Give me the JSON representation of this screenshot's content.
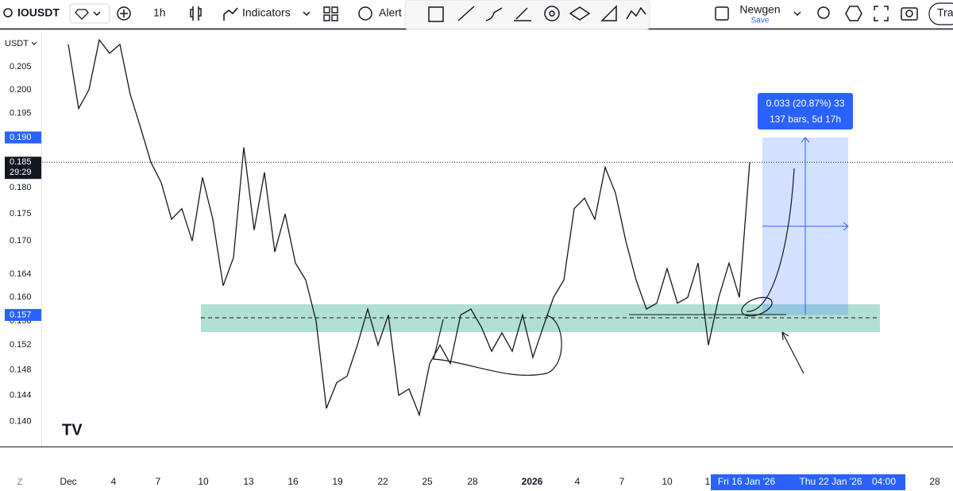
{
  "toolbar": {
    "symbol": "IOUSDT",
    "interval": "1h",
    "indicators": "Indicators",
    "alert": "Alert",
    "layout_name": "Newgen",
    "save": "Save",
    "trade": "Trad"
  },
  "chart_data": {
    "type": "line",
    "currency": "USDT",
    "log": true,
    "color": "#131722",
    "ylim": [
      0.1363,
      0.2134
    ],
    "yticks": [
      0.205,
      {
        "value": 0.2,
        "label": "0.200"
      },
      0.195,
      {
        "value": 0.19,
        "label": "0.190"
      },
      0.185,
      {
        "value": 0.18,
        "label": "0.180"
      },
      0.175,
      {
        "value": 0.17,
        "label": "0.170"
      },
      0.164,
      {
        "value": 0.16,
        "label": "0.160"
      },
      0.156,
      0.152,
      0.148,
      0.144,
      {
        "value": 0.14,
        "label": "0.140"
      }
    ],
    "price_markers": [
      {
        "value": 0.19,
        "label": "0.190"
      },
      {
        "value": 0.185,
        "label": "0.185",
        "countdown": "29:29"
      },
      0.157
    ],
    "x_axis_labels": [
      "Dec",
      "4",
      "7",
      "10",
      "13",
      "16",
      "19",
      "22",
      "25",
      "28",
      "2026",
      "4",
      "7",
      "10",
      "1",
      "1",
      "28"
    ],
    "x_axis_highlights": [
      "Fri 16 Jan '26",
      "Thu 22 Jan '26",
      "04:00"
    ],
    "measure": {
      "line1": "0.033 (20.87%) 33",
      "line2": "137 bars, 5d 17h"
    },
    "values": [
      0.21,
      0.196,
      0.2,
      0.211,
      0.208,
      0.21,
      0.199,
      0.192,
      0.185,
      0.181,
      0.174,
      0.176,
      0.17,
      0.182,
      0.174,
      0.162,
      0.167,
      0.188,
      0.172,
      0.183,
      0.168,
      0.175,
      0.166,
      0.163,
      0.156,
      0.142,
      0.146,
      0.147,
      0.152,
      0.158,
      0.152,
      0.157,
      0.144,
      0.145,
      0.141,
      0.149,
      0.152,
      0.149,
      0.157,
      0.158,
      0.155,
      0.151,
      0.154,
      0.151,
      0.157,
      0.15,
      0.155,
      0.16,
      0.163,
      0.176,
      0.178,
      0.174,
      0.184,
      0.179,
      0.17,
      0.163,
      0.158,
      0.159,
      0.165,
      0.159,
      0.16,
      0.166,
      0.152,
      0.16,
      0.166,
      0.16,
      0.185
    ]
  }
}
